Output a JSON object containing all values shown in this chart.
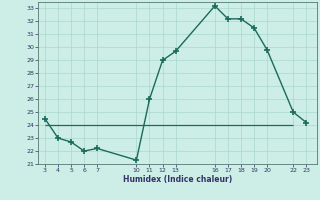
{
  "xlabel": "Humidex (Indice chaleur)",
  "x_hours": [
    3,
    4,
    5,
    6,
    7,
    10,
    11,
    12,
    13,
    16,
    17,
    18,
    19,
    20,
    22,
    23
  ],
  "y_values": [
    24.5,
    23.0,
    22.7,
    22.0,
    22.2,
    21.3,
    26.0,
    29.0,
    29.7,
    33.2,
    32.2,
    32.2,
    31.5,
    29.8,
    25.0,
    24.2
  ],
  "hline_y": 24.0,
  "hline_x_start": 3,
  "hline_x_end": 22,
  "ylim": [
    21,
    33.5
  ],
  "xlim": [
    2.5,
    23.8
  ],
  "yticks": [
    21,
    22,
    23,
    24,
    25,
    26,
    27,
    28,
    29,
    30,
    31,
    32,
    33
  ],
  "xticks": [
    3,
    4,
    5,
    6,
    7,
    10,
    11,
    12,
    13,
    16,
    17,
    18,
    19,
    20,
    22,
    23
  ],
  "line_color": "#1a6b5a",
  "hline_color": "#1a6b5a",
  "bg_color": "#cdeee6",
  "grid_color": "#aad6cc",
  "tick_label_color": "#333366",
  "xlabel_color": "#333366",
  "marker": "+",
  "markersize": 4,
  "linewidth": 1.0
}
